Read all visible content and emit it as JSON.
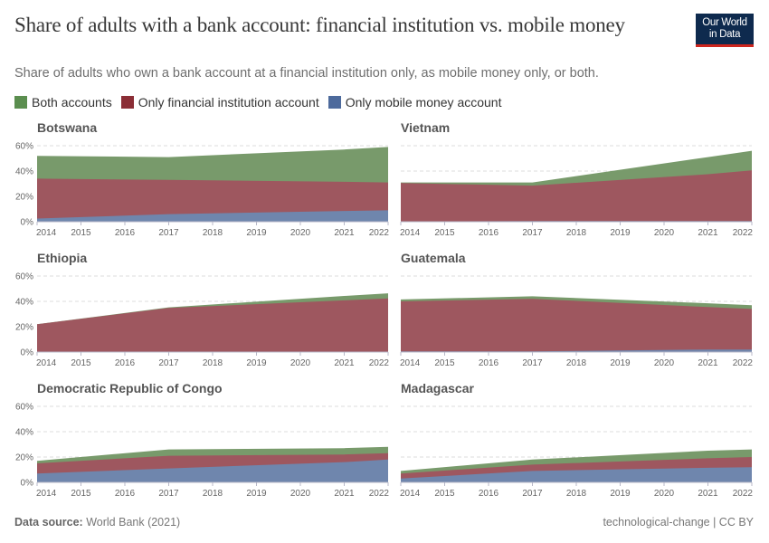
{
  "header": {
    "title": "Share of adults with a bank account: financial institution vs. mobile money",
    "subtitle": "Share of adults who own a bank account at a financial institution only, as mobile money only, or both.",
    "logo_line1": "Our World",
    "logo_line2": "in Data"
  },
  "legend": {
    "items": [
      {
        "label": "Both accounts",
        "color": "#5b8e4f"
      },
      {
        "label": "Only financial institution account",
        "color": "#8b2e36"
      },
      {
        "label": "Only mobile money account",
        "color": "#4d6a9c"
      }
    ]
  },
  "colors": {
    "both_fill": "#789a6b",
    "fin_fill": "#9e575f",
    "mobile_fill": "#6f86ad",
    "grid": "#dddddd"
  },
  "footer": {
    "source_label": "Data source:",
    "source_value": "World Bank (2021)",
    "license": "technological-change | CC BY"
  },
  "chart_data": {
    "type": "area",
    "stacked": true,
    "title": "Share of adults with a bank account: financial institution vs. mobile money",
    "subtitle": "Share of adults who own a bank account at a financial institution only, as mobile money only, or both.",
    "x_ticks": [
      "2014",
      "2015",
      "2016",
      "2017",
      "2018",
      "2019",
      "2020",
      "2021",
      "2022"
    ],
    "y_ticks": [
      "0%",
      "20%",
      "40%",
      "60%"
    ],
    "ylim": [
      0,
      60
    ],
    "data_years": [
      2014,
      2017,
      2021,
      2022
    ],
    "legend": [
      "Both accounts",
      "Only financial institution account",
      "Only mobile money account"
    ],
    "legend_position": "top",
    "grid": "horizontal dashed",
    "panels": [
      {
        "country": "Botswana",
        "years": [
          2014,
          2017,
          2021,
          2022
        ],
        "series": [
          {
            "name": "Only mobile money account",
            "values": [
              2.5,
              6,
              8.5,
              9
            ]
          },
          {
            "name": "Only financial institution account",
            "values": [
              31.5,
              27,
              23,
              22
            ]
          },
          {
            "name": "Both accounts",
            "values": [
              18,
              18,
              26,
              28
            ]
          }
        ],
        "stack_tops": {
          "mobile": [
            2.5,
            6,
            8.5,
            9
          ],
          "financial": [
            34,
            33,
            31.5,
            31
          ],
          "both": [
            52,
            51,
            57,
            59
          ]
        }
      },
      {
        "country": "Vietnam",
        "years": [
          2014,
          2017,
          2021,
          2022
        ],
        "series": [
          {
            "name": "Only mobile money account",
            "values": [
              0.3,
              0.5,
              0.5,
              0.5
            ]
          },
          {
            "name": "Only financial institution account",
            "values": [
              30,
              28,
              37,
              40
            ]
          },
          {
            "name": "Both accounts",
            "values": [
              0.7,
              2.5,
              13.5,
              16
            ]
          }
        ],
        "stack_tops": {
          "mobile": [
            0.3,
            0.5,
            0.5,
            0.5
          ],
          "financial": [
            30.5,
            28.5,
            37.5,
            40.5
          ],
          "both": [
            31,
            31,
            51,
            56
          ]
        }
      },
      {
        "country": "Ethiopia",
        "years": [
          2014,
          2017,
          2021,
          2022
        ],
        "series": [
          {
            "name": "Only mobile money account",
            "values": [
              0,
              0.3,
              0.3,
              0.3
            ]
          },
          {
            "name": "Only financial institution account",
            "values": [
              22,
              34.5,
              40.5,
              42
            ]
          },
          {
            "name": "Both accounts",
            "values": [
              0,
              0.5,
              3.5,
              4
            ]
          }
        ],
        "stack_tops": {
          "mobile": [
            0,
            0.3,
            0.3,
            0.3
          ],
          "financial": [
            22,
            34.8,
            40.8,
            42.3
          ],
          "both": [
            22,
            35.3,
            44.3,
            46.3
          ]
        }
      },
      {
        "country": "Guatemala",
        "years": [
          2014,
          2017,
          2021,
          2022
        ],
        "series": [
          {
            "name": "Only mobile money account",
            "values": [
              0.5,
              0.5,
              2,
              2
            ]
          },
          {
            "name": "Only financial institution account",
            "values": [
              39.5,
              41.5,
              33.5,
              32
            ]
          },
          {
            "name": "Both accounts",
            "values": [
              1.5,
              2,
              3,
              3
            ]
          }
        ],
        "stack_tops": {
          "mobile": [
            0.5,
            0.5,
            2,
            2
          ],
          "financial": [
            40,
            42,
            35.5,
            34
          ],
          "both": [
            41.5,
            44,
            38.5,
            37
          ]
        }
      },
      {
        "country": "Democratic Republic of Congo",
        "years": [
          2014,
          2017,
          2021,
          2022
        ],
        "series": [
          {
            "name": "Only mobile money account",
            "values": [
              7,
              11,
              16,
              18
            ]
          },
          {
            "name": "Only financial institution account",
            "values": [
              8,
              10,
              6,
              5
            ]
          },
          {
            "name": "Both accounts",
            "values": [
              2,
              5,
              5,
              5
            ]
          }
        ],
        "stack_tops": {
          "mobile": [
            7,
            11,
            16,
            18
          ],
          "financial": [
            15,
            21,
            22,
            23
          ],
          "both": [
            17,
            26,
            27,
            28
          ]
        }
      },
      {
        "country": "Madagascar",
        "years": [
          2014,
          2017,
          2021,
          2022
        ],
        "series": [
          {
            "name": "Only mobile money account",
            "values": [
              3,
              9,
              11.5,
              12
            ]
          },
          {
            "name": "Only financial institution account",
            "values": [
              4,
              5,
              7.5,
              8
            ]
          },
          {
            "name": "Both accounts",
            "values": [
              2,
              4,
              6,
              6
            ]
          }
        ],
        "stack_tops": {
          "mobile": [
            3,
            9,
            11.5,
            12
          ],
          "financial": [
            7,
            14,
            19,
            20
          ],
          "both": [
            9,
            18,
            25,
            26
          ]
        }
      }
    ]
  }
}
